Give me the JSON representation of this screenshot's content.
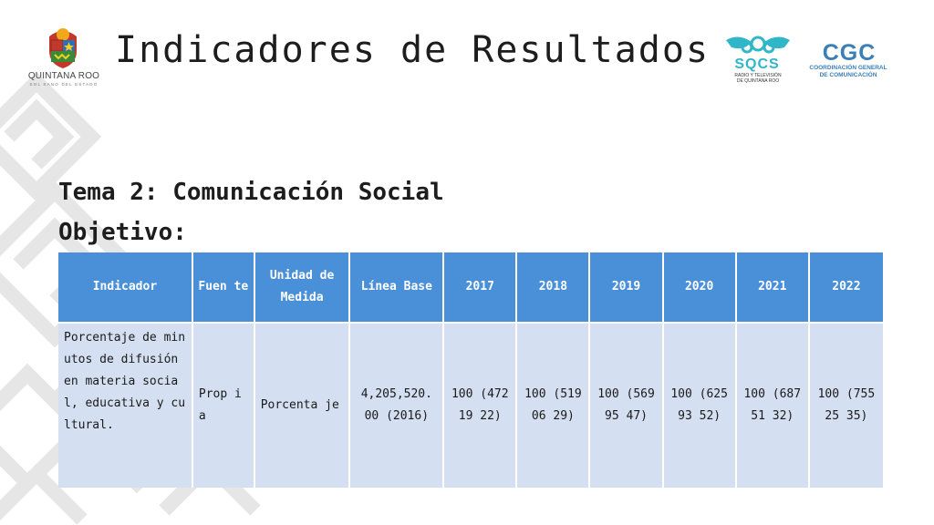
{
  "header": {
    "title": "Indicadores de Resultados",
    "state_logo_name": "QUINTANA ROO",
    "state_logo_sub": "SOL SANO DEL ESTADO",
    "sqcs_logo_text": "SQCS",
    "sqcs_caption_line1": "RADIO Y TELEVISIÓN",
    "sqcs_caption_line2": "DE QUINTANA ROO",
    "cgc_logo_text": "CGC",
    "cgc_caption_line1": "COORDINACIÓN GENERAL",
    "cgc_caption_line2": "DE COMUNICACIÓN"
  },
  "section": {
    "tema": "Tema 2: Comunicación Social",
    "objetivo": "Objetivo:"
  },
  "table": {
    "headers": [
      "Indicador",
      "Fuen te",
      "Unidad de Medida",
      "Línea Base",
      "2017",
      "2018",
      "2019",
      "2020",
      "2021",
      "2022"
    ],
    "row": {
      "indicador": "Porcentaje de minutos de difusión en materia social, educativa y cultural.",
      "fuente": "Prop ia",
      "unidad": "Porcenta je",
      "linea_base": "4,205,520. 00 (2016)",
      "y2017": "100 (47219 22)",
      "y2018": "100 (51906 29)",
      "y2019": "100 (56995 47)",
      "y2020": "100 (62593 52)",
      "y2021": "100 (68751 32)",
      "y2022": "100 (75525 35)"
    }
  },
  "colors": {
    "header_blue": "#4a90d9",
    "cell_blue": "#d4e0f1",
    "pattern_gray": "#e6e6e6",
    "sqcs_teal": "#2fb7c9",
    "cgc_blue": "#3a7fb6"
  }
}
